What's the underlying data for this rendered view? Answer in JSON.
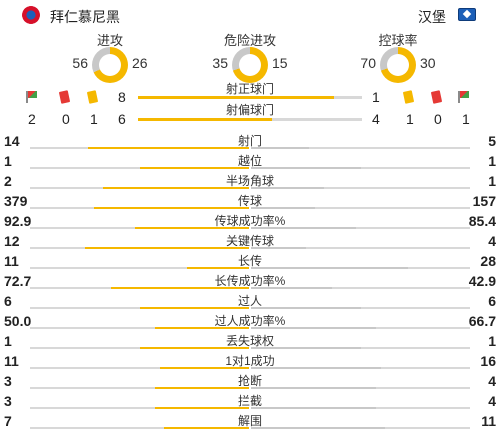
{
  "header": {
    "home_team": "拜仁慕尼黑",
    "away_team": "汉堡",
    "home_color": "#f5b800",
    "away_color": "#c8c8c8"
  },
  "donuts": [
    {
      "title": "进攻",
      "home": 56,
      "away": 26
    },
    {
      "title": "危险进攻",
      "home": 35,
      "away": 15
    },
    {
      "title": "控球率",
      "home": 70,
      "away": 30
    }
  ],
  "shots": {
    "on_target_label": "射正球门",
    "off_target_label": "射偏球门",
    "home_on_target": "8",
    "away_on_target": "1",
    "home_off_target": "6",
    "away_off_target": "4",
    "home_corners": "2",
    "home_red_cards": "0",
    "home_yellow_cards": "1",
    "away_yellow_cards": "1",
    "away_red_cards": "0",
    "away_corners": "1"
  },
  "stats": [
    {
      "label": "射门",
      "home": "14",
      "away": "5"
    },
    {
      "label": "越位",
      "home": "1",
      "away": "1"
    },
    {
      "label": "半场角球",
      "home": "2",
      "away": "1"
    },
    {
      "label": "传球",
      "home": "379",
      "away": "157"
    },
    {
      "label": "传球成功率%",
      "home": "92.9",
      "away": "85.4"
    },
    {
      "label": "关键传球",
      "home": "12",
      "away": "4"
    },
    {
      "label": "长传",
      "home": "11",
      "away": "28"
    },
    {
      "label": "长传成功率%",
      "home": "72.7",
      "away": "42.9"
    },
    {
      "label": "过人",
      "home": "6",
      "away": "6"
    },
    {
      "label": "过人成功率%",
      "home": "50.0",
      "away": "66.7"
    },
    {
      "label": "丢失球权",
      "home": "1",
      "away": "1"
    },
    {
      "label": "1对1成功",
      "home": "11",
      "away": "16"
    },
    {
      "label": "抢断",
      "home": "3",
      "away": "4"
    },
    {
      "label": "拦截",
      "home": "3",
      "away": "4"
    },
    {
      "label": "解围",
      "home": "7",
      "away": "11"
    }
  ]
}
